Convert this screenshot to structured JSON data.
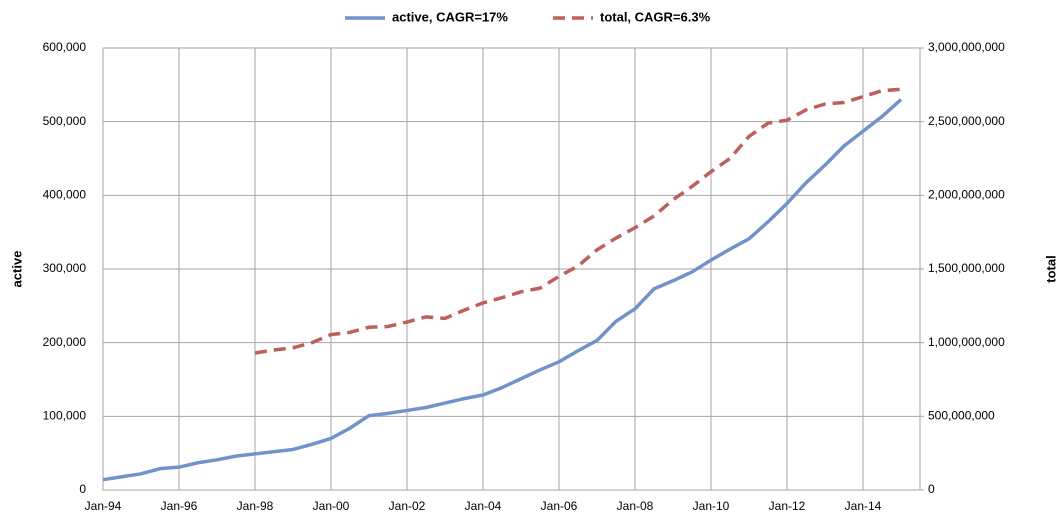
{
  "chart_data": {
    "type": "line",
    "categories": [
      "Jan-94",
      null,
      null,
      null,
      "Jan-96",
      null,
      null,
      null,
      "Jan-98",
      null,
      null,
      null,
      "Jan-00",
      null,
      null,
      null,
      "Jan-02",
      null,
      null,
      null,
      "Jan-04",
      null,
      null,
      null,
      "Jan-06",
      null,
      null,
      null,
      "Jan-08",
      null,
      null,
      null,
      "Jan-10",
      null,
      null,
      null,
      "Jan-12",
      null,
      null,
      null,
      "Jan-14",
      null,
      null
    ],
    "series": [
      {
        "name": "active, CAGR=17%",
        "color": "#7094c9",
        "axis": "y",
        "values": [
          14000,
          18000,
          22000,
          29000,
          31000,
          37000,
          41000,
          46000,
          49000,
          52000,
          55000,
          62000,
          70000,
          84000,
          101000,
          104000,
          108000,
          112000,
          118000,
          124000,
          129000,
          139000,
          151000,
          163000,
          174000,
          189000,
          203000,
          229000,
          246000,
          273000,
          284000,
          296000,
          312000,
          327000,
          341000,
          364000,
          389000,
          417000,
          441000,
          467000,
          487000,
          507000,
          530000
        ]
      },
      {
        "name": "total, CAGR=6.3%",
        "color": "#bd5f5a",
        "axis": "y2",
        "dashed": true,
        "values": [
          null,
          null,
          null,
          null,
          null,
          null,
          null,
          null,
          930000000,
          950000000,
          965000000,
          1000000000,
          1055000000,
          1070000000,
          1105000000,
          1110000000,
          1140000000,
          1175000000,
          1165000000,
          1220000000,
          1270000000,
          1305000000,
          1345000000,
          1370000000,
          1450000000,
          1520000000,
          1630000000,
          1710000000,
          1780000000,
          1860000000,
          1970000000,
          2060000000,
          2160000000,
          2250000000,
          2400000000,
          2490000000,
          2510000000,
          2580000000,
          2620000000,
          2630000000,
          2670000000,
          2710000000,
          2720000000
        ]
      }
    ],
    "y_label": "active",
    "y2_label": "total",
    "ylim": [
      0,
      600000
    ],
    "yticks": [
      0,
      {
        "value": 100000,
        "label": "100,000"
      },
      {
        "value": 200000,
        "label": "200,000"
      },
      {
        "value": 300000,
        "label": "300,000"
      },
      {
        "value": 400000,
        "label": "400,000"
      },
      {
        "value": 500000,
        "label": "500,000"
      },
      {
        "value": 600000,
        "label": "600,000"
      }
    ],
    "y2lim": [
      0,
      3000000000
    ],
    "y2ticks": [
      0,
      {
        "value": 500000000,
        "label": "500,000,000"
      },
      {
        "value": 1000000000,
        "label": "1,000,000,000"
      },
      {
        "value": 1500000000,
        "label": "1,500,000,000"
      },
      {
        "value": 2000000000,
        "label": "2,000,000,000"
      },
      {
        "value": 2500000000,
        "label": "2,500,000,000"
      },
      {
        "value": 3000000000,
        "label": "3,000,000,000"
      }
    ],
    "grid": true,
    "legend": "top"
  }
}
